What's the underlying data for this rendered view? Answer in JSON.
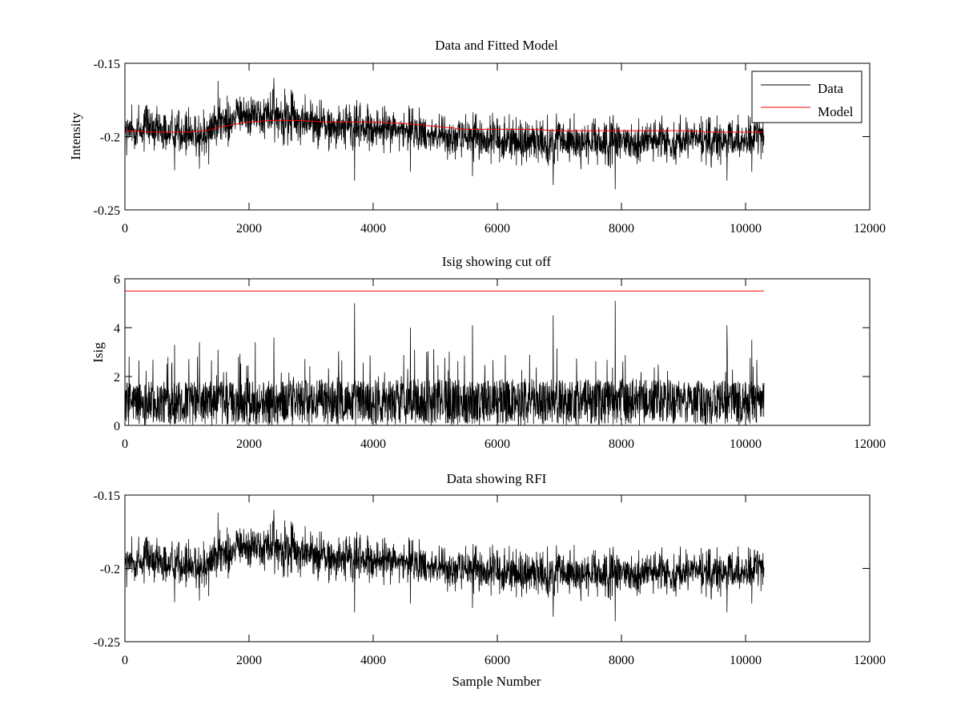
{
  "chart_data": [
    {
      "type": "line",
      "title": "Data and Fitted Model",
      "xlabel": "",
      "ylabel": "Intensity",
      "xlim": [
        0,
        12000
      ],
      "ylim": [
        -0.25,
        -0.15
      ],
      "xticks": [
        0,
        2000,
        4000,
        6000,
        8000,
        10000,
        12000
      ],
      "xtick_labels": [
        "0",
        "2000",
        "4000",
        "6000",
        "8000",
        "10000",
        "12000"
      ],
      "yticks": [
        -0.15,
        -0.2,
        -0.25
      ],
      "ytick_labels": [
        "-0.15",
        "-0.2",
        "-0.25"
      ],
      "grid": false,
      "legend": {
        "position": "top-right",
        "entries": [
          "Data",
          "Model"
        ]
      },
      "series": [
        {
          "name": "Data",
          "color": "#000000",
          "style": "noisy",
          "n_samples": 10300,
          "envelope_x": [
            0,
            800,
            1200,
            1500,
            1800,
            2100,
            2400,
            2700,
            3000,
            3400,
            3800,
            4200,
            4600,
            5000,
            5400,
            5800,
            6200,
            6600,
            7000,
            7400,
            7800,
            8200,
            8600,
            9000,
            9400,
            9800,
            10300
          ],
          "envelope_lo": [
            -0.215,
            -0.215,
            -0.218,
            -0.21,
            -0.205,
            -0.203,
            -0.205,
            -0.208,
            -0.209,
            -0.212,
            -0.215,
            -0.212,
            -0.213,
            -0.216,
            -0.218,
            -0.22,
            -0.221,
            -0.222,
            -0.224,
            -0.223,
            -0.225,
            -0.222,
            -0.221,
            -0.22,
            -0.221,
            -0.223,
            -0.215
          ],
          "envelope_hi": [
            -0.178,
            -0.178,
            -0.181,
            -0.172,
            -0.167,
            -0.166,
            -0.164,
            -0.168,
            -0.172,
            -0.173,
            -0.174,
            -0.176,
            -0.179,
            -0.181,
            -0.183,
            -0.183,
            -0.184,
            -0.185,
            -0.184,
            -0.184,
            -0.184,
            -0.185,
            -0.185,
            -0.185,
            -0.185,
            -0.185,
            -0.183
          ],
          "spikes": [
            [
              800,
              -0.223
            ],
            [
              1200,
              -0.222
            ],
            [
              1350,
              -0.219
            ],
            [
              1500,
              -0.162
            ],
            [
              2400,
              -0.16
            ],
            [
              3700,
              -0.23
            ],
            [
              4600,
              -0.224
            ],
            [
              5600,
              -0.227
            ],
            [
              6900,
              -0.233
            ],
            [
              7900,
              -0.236
            ],
            [
              9700,
              -0.23
            ],
            [
              10100,
              -0.224
            ]
          ]
        },
        {
          "name": "Model",
          "color": "#ff0000",
          "x": [
            0,
            500,
            1000,
            1300,
            1600,
            2000,
            2400,
            2800,
            3200,
            3600,
            4000,
            4500,
            5000,
            5500,
            6000,
            6500,
            7000,
            7500,
            8000,
            8500,
            9000,
            9500,
            10000,
            10300
          ],
          "y": [
            -0.196,
            -0.197,
            -0.197,
            -0.196,
            -0.193,
            -0.19,
            -0.189,
            -0.189,
            -0.19,
            -0.19,
            -0.19,
            -0.191,
            -0.193,
            -0.195,
            -0.195,
            -0.195,
            -0.196,
            -0.196,
            -0.196,
            -0.196,
            -0.196,
            -0.197,
            -0.197,
            -0.197
          ]
        }
      ]
    },
    {
      "type": "line",
      "title": "Isig showing cut off",
      "xlabel": "",
      "ylabel": "Isig",
      "xlim": [
        0,
        12000
      ],
      "ylim": [
        0,
        6
      ],
      "xticks": [
        0,
        2000,
        4000,
        6000,
        8000,
        10000,
        12000
      ],
      "xtick_labels": [
        "0",
        "2000",
        "4000",
        "6000",
        "8000",
        "10000",
        "12000"
      ],
      "yticks": [
        0,
        2,
        4,
        6
      ],
      "ytick_labels": [
        "0",
        "2",
        "4",
        "6"
      ],
      "grid": false,
      "series": [
        {
          "color": "#000000",
          "style": "noisy-positive",
          "n_samples": 10300,
          "envelope_x": [
            0,
            2000,
            4000,
            6000,
            8000,
            10300
          ],
          "envelope_lo": [
            0,
            0,
            0,
            0,
            0,
            0
          ],
          "envelope_hi": [
            1.8,
            1.8,
            1.9,
            1.9,
            1.9,
            1.8
          ],
          "spikes": [
            [
              800,
              3.3
            ],
            [
              1200,
              3.4
            ],
            [
              1500,
              3.1
            ],
            [
              2100,
              3.4
            ],
            [
              2400,
              3.6
            ],
            [
              3700,
              5.0
            ],
            [
              4600,
              4.0
            ],
            [
              5600,
              4.1
            ],
            [
              6900,
              4.5
            ],
            [
              7900,
              5.1
            ],
            [
              9700,
              4.1
            ],
            [
              10100,
              3.5
            ]
          ]
        },
        {
          "color": "#ff0000",
          "x": [
            0,
            10300
          ],
          "y": [
            5.5,
            5.5
          ]
        }
      ]
    },
    {
      "type": "line",
      "title": "Data showing RFI",
      "xlabel": "Sample Number",
      "ylabel": "",
      "xlim": [
        0,
        12000
      ],
      "ylim": [
        -0.25,
        -0.15
      ],
      "xticks": [
        0,
        2000,
        4000,
        6000,
        8000,
        10000,
        12000
      ],
      "xtick_labels": [
        "0",
        "2000",
        "4000",
        "6000",
        "8000",
        "10000",
        "12000"
      ],
      "yticks": [
        -0.15,
        -0.2,
        -0.25
      ],
      "ytick_labels": [
        "-0.15",
        "-0.2",
        "-0.25"
      ],
      "grid": false,
      "series": [
        {
          "color": "#000000",
          "style": "noisy",
          "n_samples": 10300,
          "envelope_x": [
            0,
            800,
            1200,
            1500,
            1800,
            2100,
            2400,
            2700,
            3000,
            3400,
            3800,
            4200,
            4600,
            5000,
            5400,
            5800,
            6200,
            6600,
            7000,
            7400,
            7800,
            8200,
            8600,
            9000,
            9400,
            9800,
            10300
          ],
          "envelope_lo": [
            -0.215,
            -0.215,
            -0.218,
            -0.21,
            -0.205,
            -0.203,
            -0.205,
            -0.208,
            -0.209,
            -0.212,
            -0.215,
            -0.212,
            -0.213,
            -0.216,
            -0.218,
            -0.22,
            -0.221,
            -0.222,
            -0.224,
            -0.223,
            -0.225,
            -0.222,
            -0.221,
            -0.22,
            -0.221,
            -0.223,
            -0.215
          ],
          "envelope_hi": [
            -0.178,
            -0.178,
            -0.181,
            -0.172,
            -0.167,
            -0.166,
            -0.164,
            -0.168,
            -0.172,
            -0.173,
            -0.174,
            -0.176,
            -0.179,
            -0.181,
            -0.183,
            -0.183,
            -0.184,
            -0.185,
            -0.184,
            -0.184,
            -0.184,
            -0.185,
            -0.185,
            -0.185,
            -0.185,
            -0.185,
            -0.183
          ],
          "spikes": [
            [
              800,
              -0.223
            ],
            [
              1200,
              -0.222
            ],
            [
              1350,
              -0.219
            ],
            [
              1500,
              -0.162
            ],
            [
              2400,
              -0.16
            ],
            [
              3700,
              -0.23
            ],
            [
              4600,
              -0.224
            ],
            [
              5600,
              -0.227
            ],
            [
              6900,
              -0.233
            ],
            [
              7900,
              -0.236
            ],
            [
              9700,
              -0.23
            ],
            [
              10100,
              -0.224
            ]
          ]
        }
      ]
    }
  ]
}
